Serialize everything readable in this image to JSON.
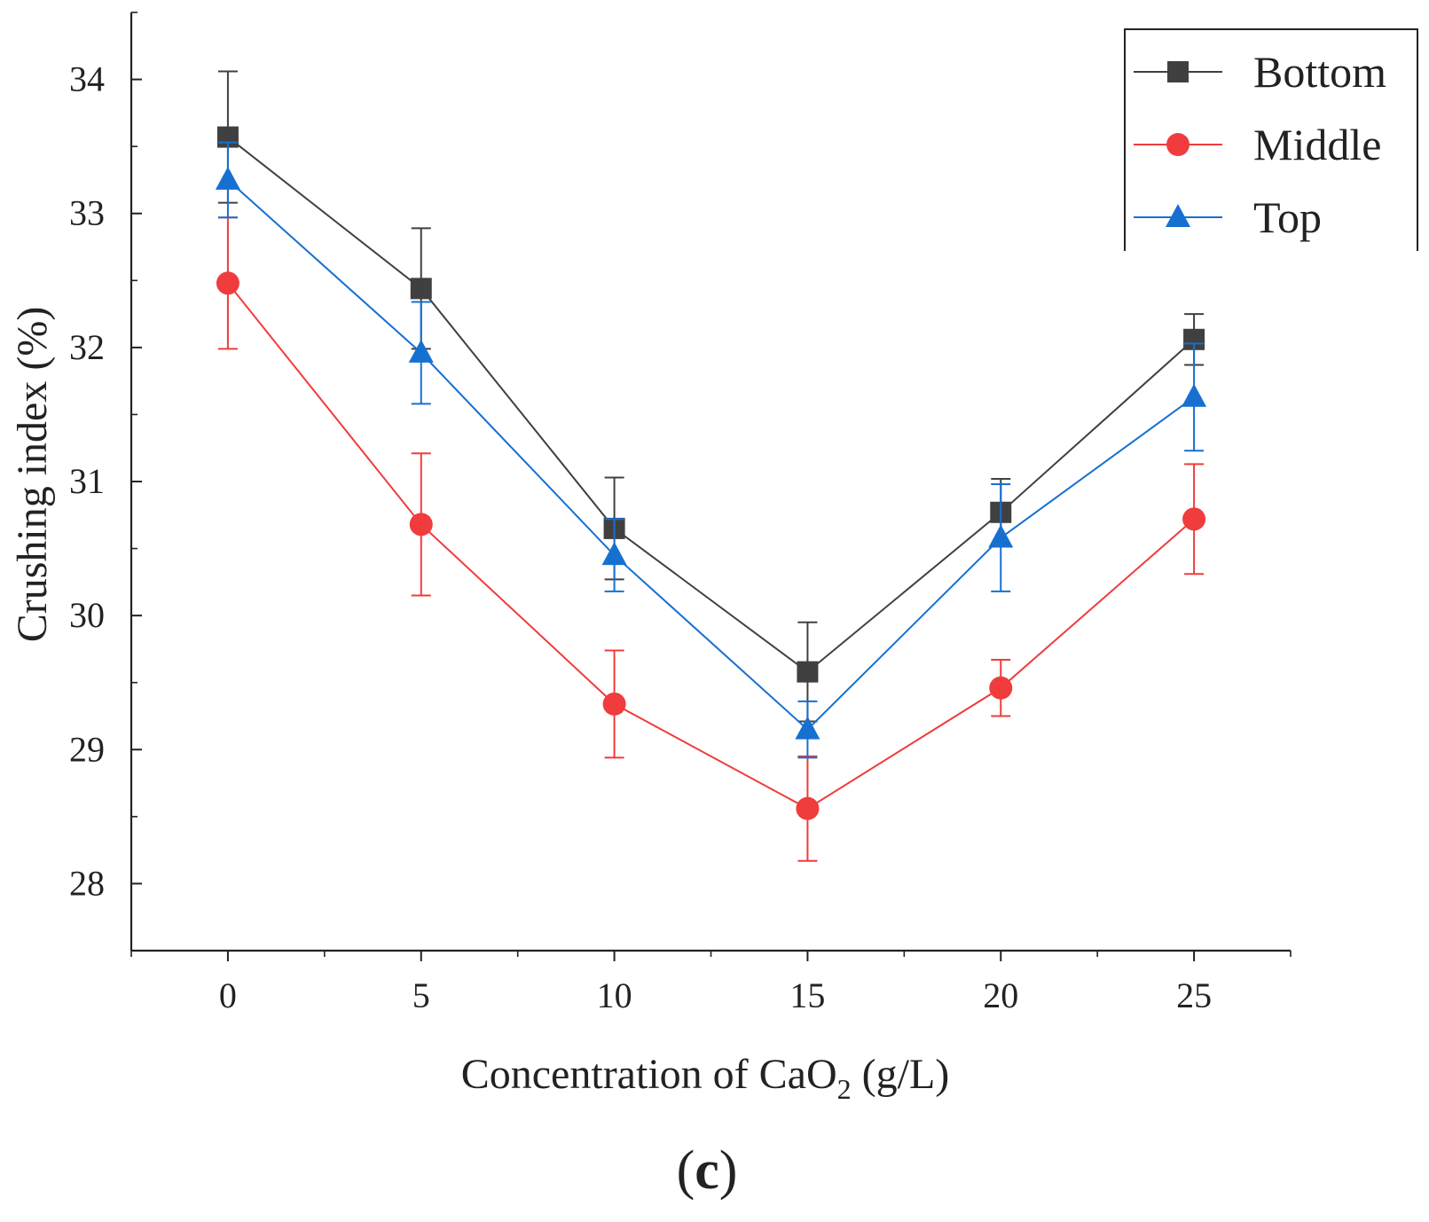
{
  "chart_data": {
    "type": "line",
    "xlabel_prefix": "Concentration of CaO",
    "xlabel_sub": "2",
    "xlabel_suffix": " (g/L)",
    "ylabel": "Crushing index (%)",
    "panel_label_open": "(",
    "panel_label_letter": "c",
    "panel_label_close": ")",
    "xlim": [
      -2.5,
      27.5
    ],
    "ylim": [
      27.5,
      34.5
    ],
    "x": [
      0,
      5,
      10,
      15,
      20,
      25
    ],
    "xticks": [
      0,
      5,
      10,
      15,
      20,
      25
    ],
    "xtick_labels": [
      "0",
      "5",
      "10",
      "15",
      "20",
      "25"
    ],
    "yticks": [
      28,
      29,
      30,
      31,
      32,
      33,
      34
    ],
    "ytick_labels": [
      "28",
      "29",
      "30",
      "31",
      "32",
      "33",
      "34"
    ],
    "legend_position": "top-right",
    "series": [
      {
        "name": "Bottom",
        "marker": "square",
        "color": "#404040",
        "values": [
          33.57,
          32.44,
          30.65,
          29.58,
          30.77,
          32.06
        ],
        "errors": [
          0.49,
          0.45,
          0.38,
          0.37,
          0.25,
          0.19
        ]
      },
      {
        "name": "Middle",
        "marker": "circle",
        "color": "#f03c3c",
        "values": [
          32.48,
          30.68,
          29.34,
          28.56,
          29.46,
          30.72
        ],
        "errors": [
          0.49,
          0.53,
          0.4,
          0.39,
          0.21,
          0.41
        ]
      },
      {
        "name": "Top",
        "marker": "triangle",
        "color": "#1670d0",
        "values": [
          33.25,
          31.96,
          30.45,
          29.15,
          30.58,
          31.63
        ],
        "errors": [
          0.28,
          0.38,
          0.27,
          0.21,
          0.4,
          0.4
        ]
      }
    ]
  }
}
